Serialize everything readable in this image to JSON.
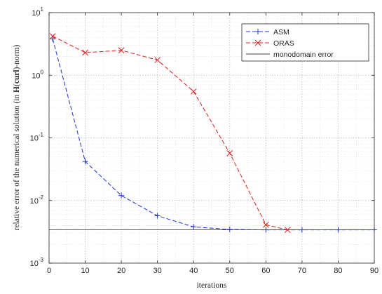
{
  "chart_data": {
    "type": "line",
    "xlabel": "iterations",
    "ylabel": "relative error of the numerical solution (in H(curl)-norm)",
    "ylabel_parts": [
      "relative error of the numerical solution (in ",
      "H",
      "(",
      "curl",
      ")-norm)"
    ],
    "xlim": [
      0,
      90
    ],
    "ylim": [
      0.001,
      10
    ],
    "yscale": "log",
    "xticks": [
      0,
      10,
      20,
      30,
      40,
      50,
      60,
      70,
      80,
      90
    ],
    "xtick_labels": [
      "0",
      "10",
      "20",
      "30",
      "40",
      "50",
      "60",
      "70",
      "80",
      "90"
    ],
    "yticks": [
      {
        "value": 0.001,
        "base": "10",
        "exp": "-3"
      },
      {
        "value": 0.01,
        "base": "10",
        "exp": "-2"
      },
      {
        "value": 0.1,
        "base": "10",
        "exp": "-1"
      },
      {
        "value": 1,
        "base": "10",
        "exp": "0"
      },
      {
        "value": 10,
        "base": "10",
        "exp": "1"
      }
    ],
    "grid": true,
    "minor_grid": true,
    "legend_position": "top-right",
    "series": [
      {
        "name": "ASM",
        "color": "#1f2fd6",
        "line_style": "dashed",
        "marker": "plus",
        "x": [
          1,
          10,
          20,
          30,
          40,
          50,
          60,
          70,
          80,
          90
        ],
        "y": [
          3.8,
          0.042,
          0.012,
          0.0057,
          0.0038,
          0.00345,
          0.0034,
          0.0034,
          0.0034,
          0.0034
        ]
      },
      {
        "name": "ORAS",
        "color": "#d81f1f",
        "line_style": "dashed",
        "marker": "x",
        "x": [
          1,
          10,
          20,
          30,
          40,
          50,
          60,
          66
        ],
        "y": [
          4.2,
          2.3,
          2.5,
          1.75,
          0.55,
          0.057,
          0.0041,
          0.0034
        ]
      },
      {
        "name": "monodomain error",
        "color": "#3a3a3a",
        "line_style": "solid",
        "marker": "none",
        "x": [
          0,
          90
        ],
        "y": [
          0.0034,
          0.0034
        ]
      }
    ]
  }
}
